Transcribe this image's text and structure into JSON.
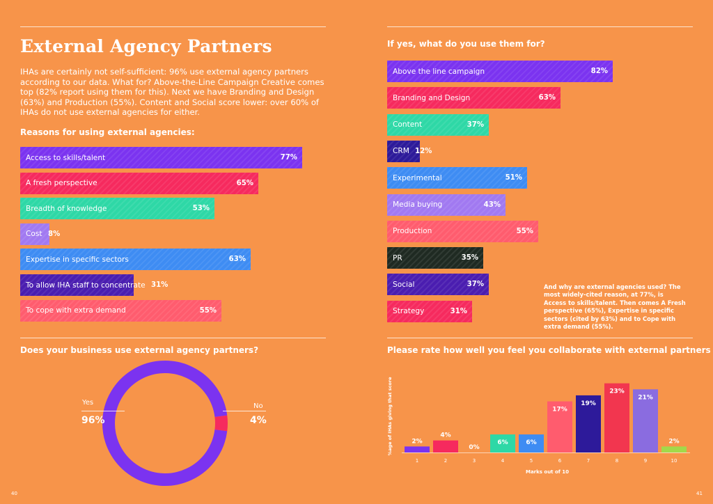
{
  "page": {
    "title": "External Agency Partners",
    "intro": "IHAs are certainly not self-sufficient: 96% use external agency partners according to our data. What for? Above-the-Line Campaign Creative comes top (82% report using them for this). Next we have Branding and Design (63%) and Production (55%). Content and Social score lower: over 60% of IHAs do not use external agencies for either.",
    "page_left": "40",
    "page_right": "41",
    "note": "And why are external agencies used? The most widely-cited reason, at 77%, is Access to skills/talent. Then comes A Fresh perspective (65%), Expertise in specific sectors (cited by 63%) and to Cope with extra demand (55%)."
  },
  "chart_data": [
    {
      "type": "bar",
      "orientation": "horizontal",
      "title": "Reasons for using external agencies:",
      "categories": [
        "Access to skills/talent",
        "A fresh perspective",
        "Breadth of knowledge",
        "Cost",
        "Expertise in specific sectors",
        "To allow IHA staff to concentrate",
        "To cope with extra demand"
      ],
      "values": [
        77,
        65,
        53,
        8,
        63,
        31,
        55
      ],
      "value_labels": [
        "77%",
        "65%",
        "53%",
        "8%",
        "63%",
        "31%",
        "55%"
      ],
      "colors": [
        "#7B33F0",
        "#F62A5E",
        "#2ED8A6",
        "#A179F1",
        "#3E8CF3",
        "#4A1DB0",
        "#FF5C6E"
      ],
      "xlim": [
        0,
        100
      ]
    },
    {
      "type": "bar",
      "orientation": "horizontal",
      "title": "If yes, what do you use them for?",
      "categories": [
        "Above the line campaign",
        "Branding and Design",
        "Content",
        "CRM",
        "Experimental",
        "Media buying",
        "Production",
        "PR",
        "Social",
        "Strategy"
      ],
      "values": [
        82,
        63,
        37,
        12,
        51,
        43,
        55,
        35,
        37,
        31
      ],
      "value_labels": [
        "82%",
        "63%",
        "37%",
        "12%",
        "51%",
        "43%",
        "55%",
        "35%",
        "37%",
        "31%"
      ],
      "colors": [
        "#7B33F0",
        "#F62A5E",
        "#2ED8A6",
        "#2D1A9A",
        "#3E8CF3",
        "#A179F1",
        "#FF5C6E",
        "#1F2A22",
        "#4A1DB0",
        "#F62A5E"
      ],
      "xlim": [
        0,
        100
      ]
    },
    {
      "type": "pie",
      "donut": true,
      "title": "Does your business use external agency partners?",
      "labels": [
        "Yes",
        "No"
      ],
      "values": [
        96,
        4
      ],
      "value_labels": [
        "96%",
        "4%"
      ],
      "colors": [
        "#7B33F0",
        "#F62A5E"
      ]
    },
    {
      "type": "bar",
      "orientation": "vertical",
      "title": "Please rate how well you feel you collaborate with external partners",
      "xlabel": "Marks out of 10",
      "ylabel": "%age of IHAs giving that score",
      "categories": [
        "1",
        "2",
        "3",
        "4",
        "5",
        "6",
        "7",
        "8",
        "9",
        "10"
      ],
      "values": [
        2,
        4,
        0,
        6,
        6,
        17,
        19,
        23,
        21,
        2
      ],
      "value_labels": [
        "2%",
        "4%",
        "0%",
        "6%",
        "6%",
        "17%",
        "19%",
        "23%",
        "21%",
        "2%"
      ],
      "colors": [
        "#7B33F0",
        "#F62A5E",
        "#2ED8A6",
        "#2ED8A6",
        "#3E8CF3",
        "#FF5C6E",
        "#2D1A9A",
        "#F2364F",
        "#8A6CE0",
        "#A3D94A"
      ],
      "ylim": [
        0,
        25
      ]
    }
  ]
}
